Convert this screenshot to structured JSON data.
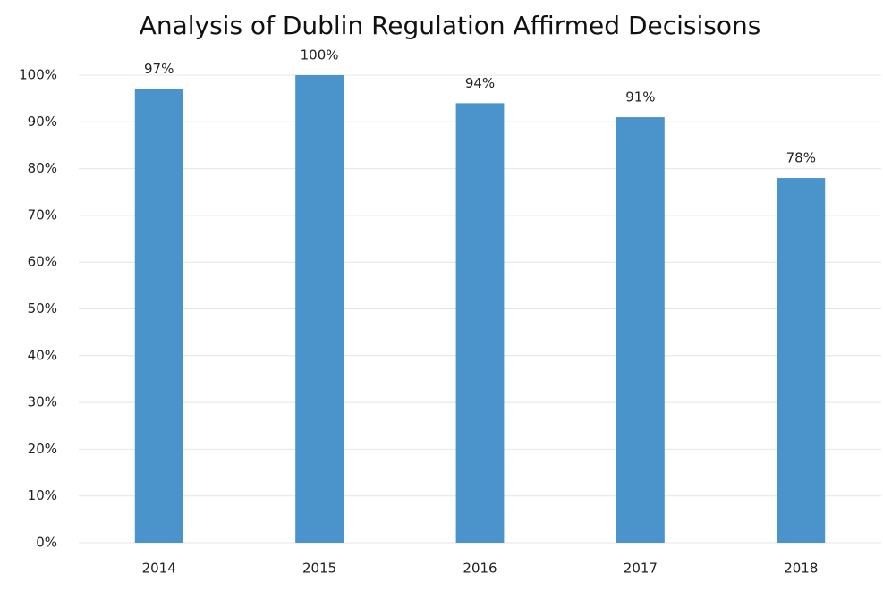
{
  "chart_data": {
    "type": "bar",
    "title": "Analysis of Dublin Regulation Affirmed Decisisons",
    "categories": [
      "2014",
      "2015",
      "2016",
      "2017",
      "2018"
    ],
    "values": [
      97,
      100,
      94,
      91,
      78
    ],
    "value_labels": [
      "97%",
      "100%",
      "94%",
      "91%",
      "78%"
    ],
    "color": "#4b93cb",
    "ylim": [
      0,
      100
    ],
    "yticks": [
      {
        "value": 0,
        "label": "0%"
      },
      {
        "value": 10,
        "label": "10%"
      },
      {
        "value": 20,
        "label": "20%"
      },
      {
        "value": 30,
        "label": "30%"
      },
      {
        "value": 40,
        "label": "40%"
      },
      {
        "value": 50,
        "label": "50%"
      },
      {
        "value": 60,
        "label": "60%"
      },
      {
        "value": 70,
        "label": "70%"
      },
      {
        "value": 80,
        "label": "80%"
      },
      {
        "value": 90,
        "label": "90%"
      },
      {
        "value": 100,
        "label": "100%"
      }
    ],
    "grid": true
  }
}
